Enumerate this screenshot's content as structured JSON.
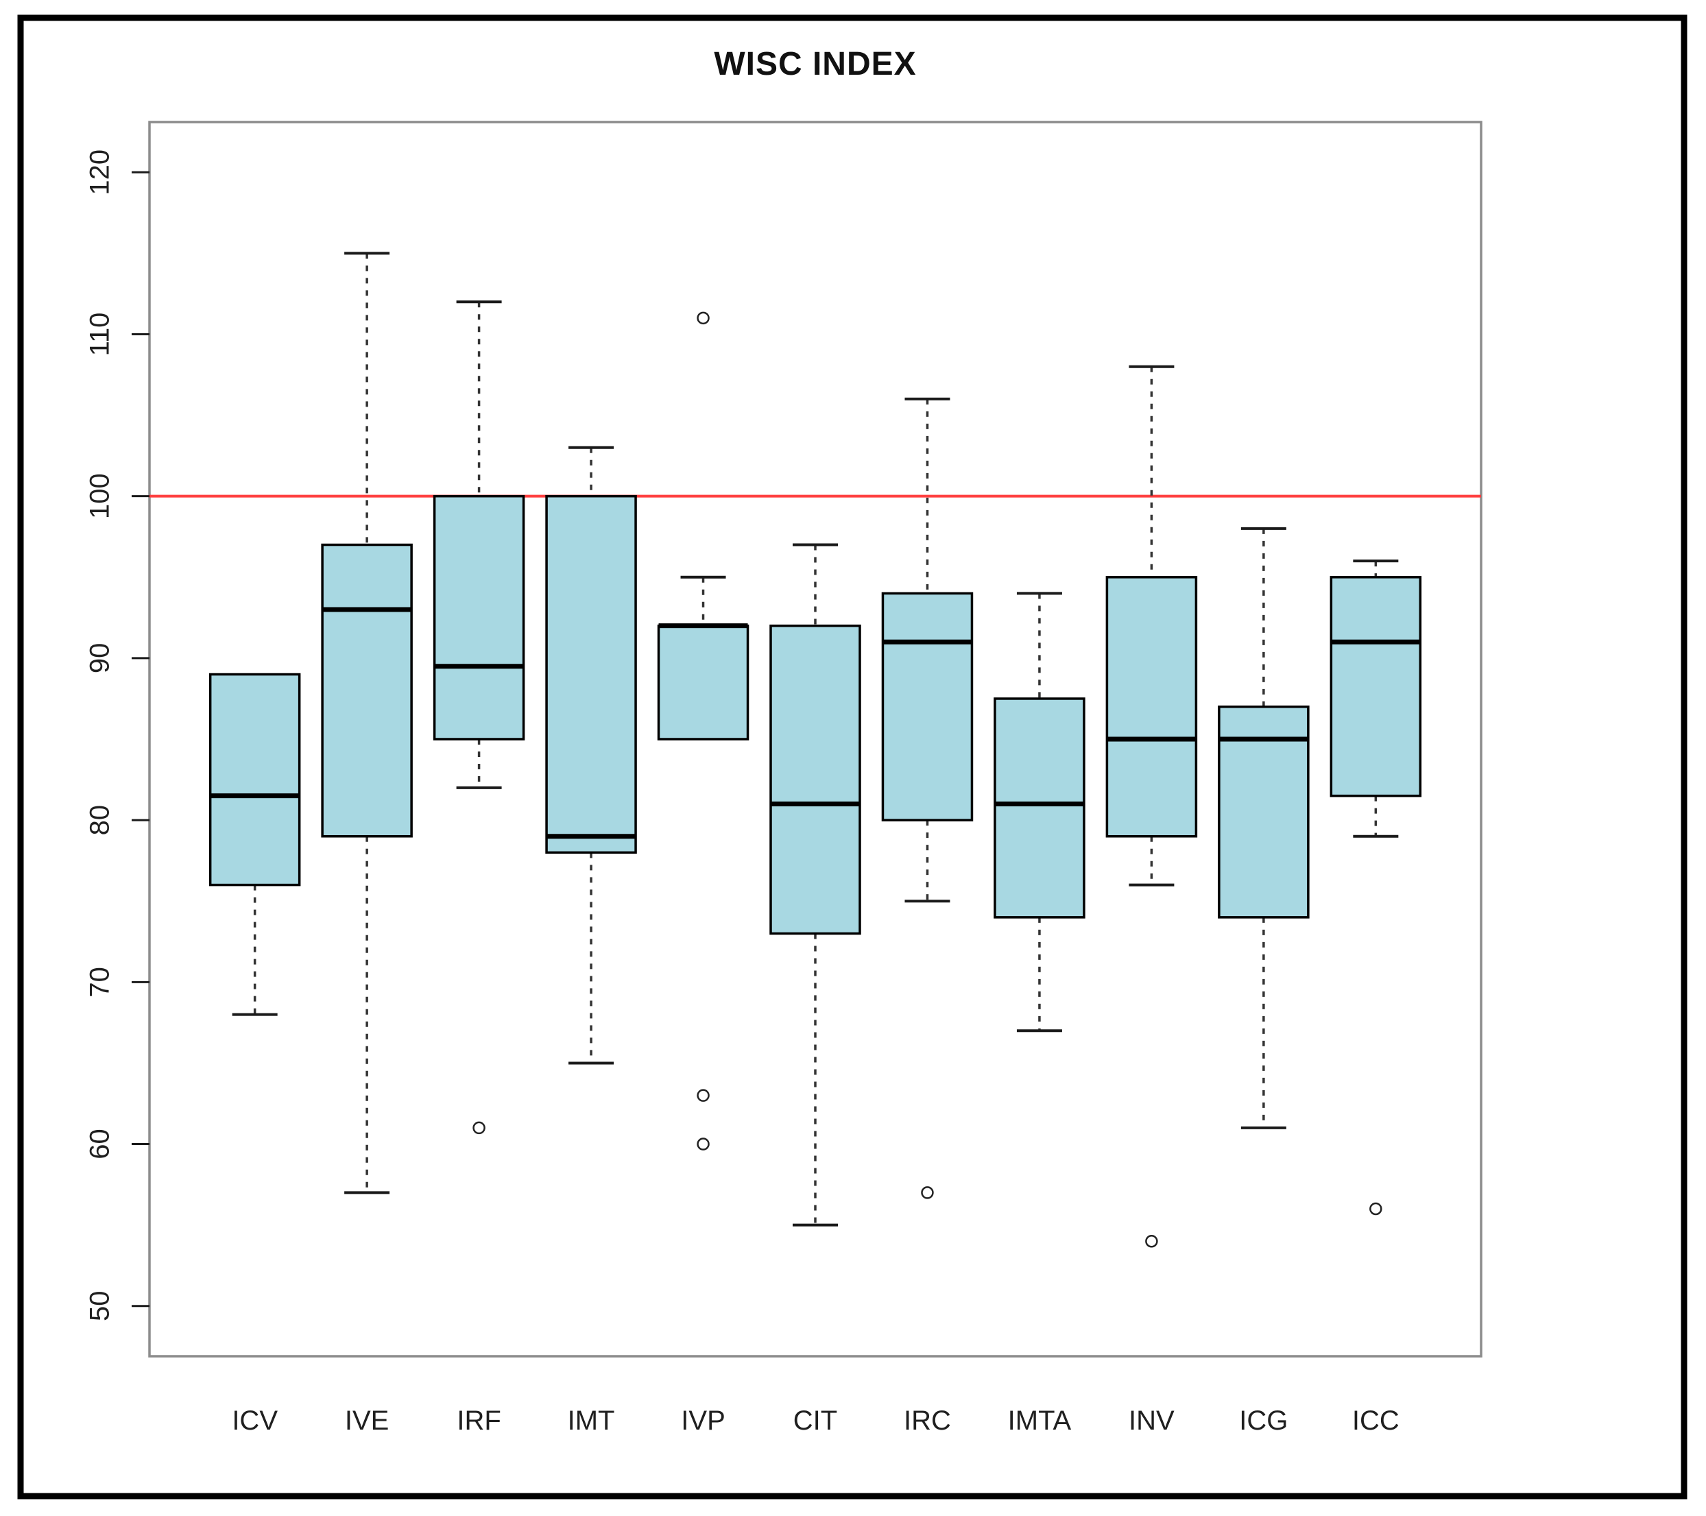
{
  "chart_data": {
    "type": "boxplot",
    "title": "WISC INDEX",
    "categories": [
      "ICV",
      "IVE",
      "IRF",
      "IMT",
      "IVP",
      "CIT",
      "IRC",
      "IMTA",
      "INV",
      "ICG",
      "ICC"
    ],
    "boxes": [
      {
        "label": "ICV",
        "whisker_low": 68,
        "q1": 76,
        "median": 81.5,
        "q3": 89,
        "whisker_high": 89,
        "outliers": []
      },
      {
        "label": "IVE",
        "whisker_low": 57,
        "q1": 79,
        "median": 93,
        "q3": 97,
        "whisker_high": 115,
        "outliers": []
      },
      {
        "label": "IRF",
        "whisker_low": 82,
        "q1": 85,
        "median": 89.5,
        "q3": 100,
        "whisker_high": 112,
        "outliers": [
          61
        ]
      },
      {
        "label": "IMT",
        "whisker_low": 65,
        "q1": 78,
        "median": 79,
        "q3": 100,
        "whisker_high": 103,
        "outliers": []
      },
      {
        "label": "IVP",
        "whisker_low": 85,
        "q1": 85,
        "median": 92,
        "q3": 92,
        "whisker_high": 95,
        "outliers": [
          111,
          63,
          60
        ]
      },
      {
        "label": "CIT",
        "whisker_low": 55,
        "q1": 73,
        "median": 81,
        "q3": 92,
        "whisker_high": 97,
        "outliers": []
      },
      {
        "label": "IRC",
        "whisker_low": 75,
        "q1": 80,
        "median": 91,
        "q3": 94,
        "whisker_high": 106,
        "outliers": [
          57
        ]
      },
      {
        "label": "IMTA",
        "whisker_low": 67,
        "q1": 74,
        "median": 81,
        "q3": 87.5,
        "whisker_high": 94,
        "outliers": []
      },
      {
        "label": "INV",
        "whisker_low": 76,
        "q1": 79,
        "median": 85,
        "q3": 95,
        "whisker_high": 108,
        "outliers": [
          54
        ]
      },
      {
        "label": "ICG",
        "whisker_low": 61,
        "q1": 74,
        "median": 85,
        "q3": 87,
        "whisker_high": 98,
        "outliers": []
      },
      {
        "label": "ICC",
        "whisker_low": 79,
        "q1": 81.5,
        "median": 91,
        "q3": 95,
        "whisker_high": 96,
        "outliers": [
          56
        ]
      }
    ],
    "y_ticks": [
      50,
      60,
      70,
      80,
      90,
      100,
      110,
      120
    ],
    "ylim": [
      46.9,
      123.1
    ],
    "xlabel": "",
    "ylabel": "",
    "grid": false,
    "legend": "none",
    "reference_line": {
      "value": 100,
      "color": "#ff4040"
    },
    "style": {
      "box_fill": "#a8d8e2",
      "box_stroke": "#000000",
      "whisker_color": "#333333",
      "cap_color": "#1a1a1a",
      "frame_color": "#8c8c8c",
      "tick_text_color": "#1f1f1f",
      "outer_border_color": "#000000",
      "background": "#ffffff"
    }
  }
}
